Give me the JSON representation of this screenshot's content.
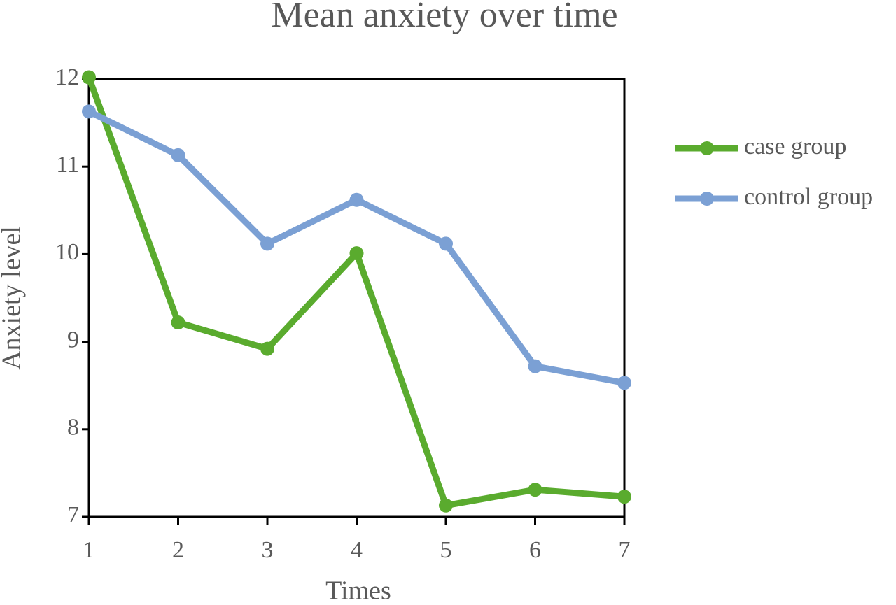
{
  "chart_data": {
    "type": "line",
    "title": "Mean anxiety over time",
    "x_label": "Times",
    "y_label": "Anxiety level",
    "x": [
      1,
      2,
      3,
      4,
      5,
      6,
      7
    ],
    "series": [
      {
        "name": "case group",
        "color": "#5aab2e",
        "values": [
          12.02,
          9.22,
          8.92,
          10.01,
          7.13,
          7.31,
          7.23
        ]
      },
      {
        "name": "control group",
        "color": "#7ba0d4",
        "values": [
          11.63,
          11.13,
          10.12,
          10.62,
          10.12,
          8.72,
          8.53
        ]
      }
    ],
    "xlim": [
      1,
      7
    ],
    "xticks": [
      1,
      2,
      3,
      4,
      5,
      6,
      7
    ],
    "ylim": [
      7,
      12
    ],
    "yticks": [
      7,
      8,
      9,
      10,
      11,
      12
    ],
    "grid": false,
    "legend": "right"
  }
}
